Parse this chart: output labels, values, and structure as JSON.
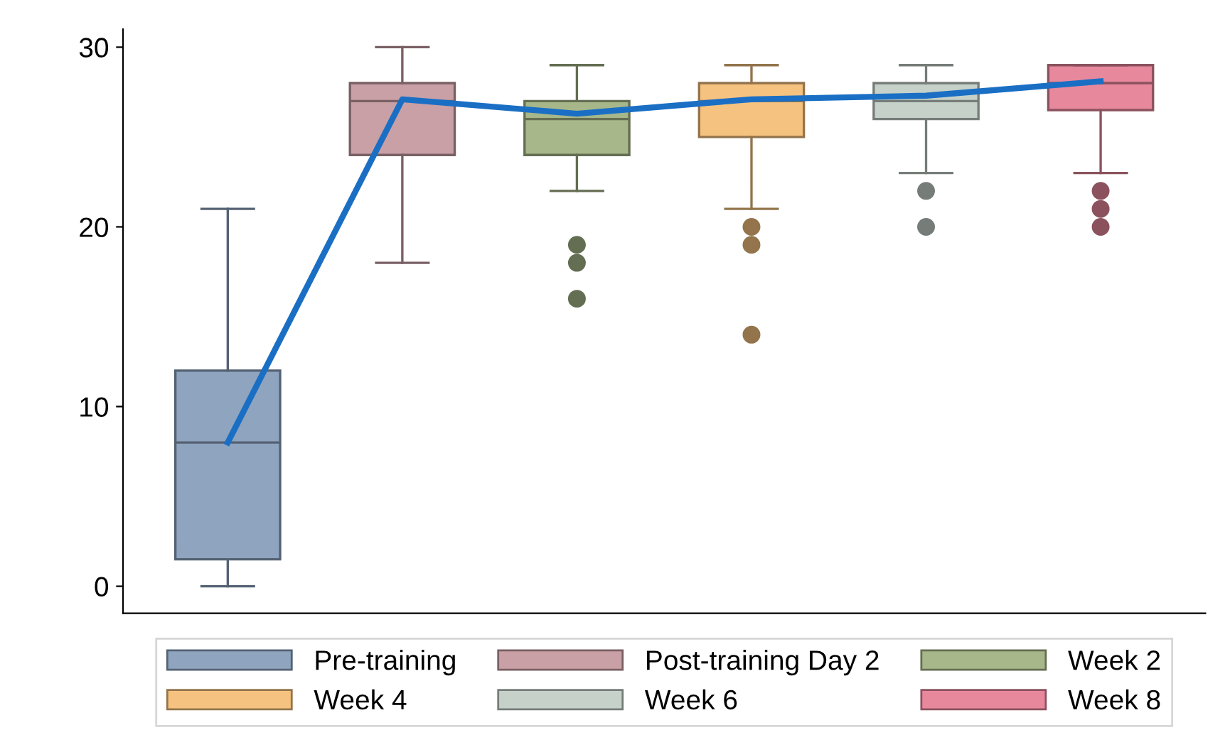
{
  "chart_data": {
    "type": "box",
    "categories": [
      null,
      null,
      null,
      null,
      null,
      null
    ],
    "ylim": [
      -1.5,
      31
    ],
    "yticks": [
      0,
      10,
      20,
      30
    ],
    "tick_labels": "y",
    "grid": false,
    "legend": "bottom",
    "series": [
      {
        "name": "Pre-training",
        "color": "#8ea4bf",
        "boxes": [
          {
            "low": 0,
            "q1": 1.5,
            "median": 8,
            "q3": 12,
            "high": 21
          },
          null,
          null,
          null,
          null,
          null
        ]
      },
      {
        "name": "Post-training Day 2",
        "color": "#c9a0a6",
        "boxes": [
          null,
          {
            "low": 18,
            "q1": 24,
            "median": 27,
            "q3": 28,
            "high": 30
          },
          null,
          null,
          null,
          null
        ]
      },
      {
        "name": "Week 2",
        "color": "#a7b789",
        "boxes": [
          null,
          null,
          {
            "low": 22,
            "q1": 24,
            "median": 26,
            "q3": 27,
            "high": 29,
            "outliers": [
              19,
              18,
              16
            ]
          },
          null,
          null,
          null
        ]
      },
      {
        "name": "Week 4",
        "color": "#f5c27f",
        "boxes": [
          null,
          null,
          null,
          {
            "low": 21,
            "q1": 25,
            "median": 27,
            "q3": 28,
            "high": 29,
            "outliers": [
              20,
              19,
              14
            ]
          },
          null,
          null
        ]
      },
      {
        "name": "Week 6",
        "color": "#c5d1c9",
        "boxes": [
          null,
          null,
          null,
          null,
          {
            "low": 23,
            "q1": 26,
            "median": 27,
            "q3": 28,
            "high": 29,
            "outliers": [
              22,
              20
            ]
          },
          null
        ]
      },
      {
        "name": "Week 8",
        "color": "#e8889d",
        "boxes": [
          null,
          null,
          null,
          null,
          null,
          {
            "low": 23,
            "q1": 26.5,
            "median": 28,
            "q3": 29,
            "high": 29,
            "outliers": [
              22,
              21,
              20
            ]
          }
        ]
      },
      {
        "type": "line",
        "color": "#1a6fc4",
        "values": [
          8,
          27.1,
          26.3,
          27.1,
          27.3,
          28.1
        ]
      }
    ]
  }
}
